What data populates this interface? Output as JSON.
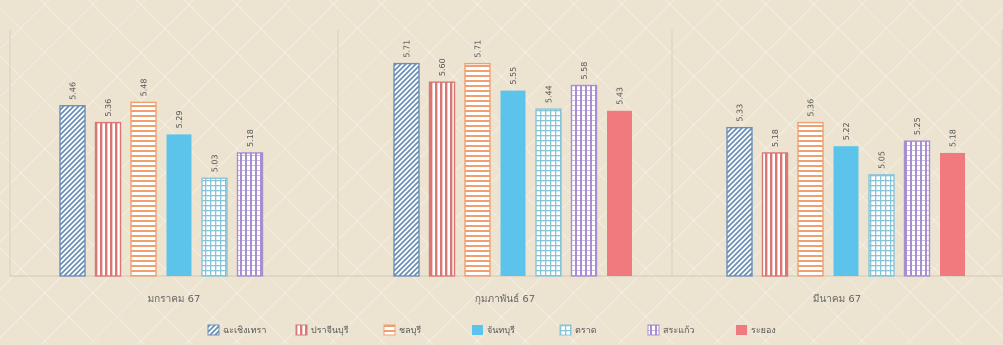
{
  "chart_data": {
    "type": "bar",
    "categories": [
      "มกราคม 67",
      "กุมภาพันธ์ 67",
      "มีนาคม 67"
    ],
    "series": [
      {
        "name": "ฉะเชิงเทรา",
        "values": [
          5.46,
          5.71,
          5.33
        ],
        "labels": [
          "5.46",
          "5.71",
          "5.33"
        ],
        "color": "#6d8fb6",
        "pattern": "diag"
      },
      {
        "name": "ปราจีนบุรี",
        "values": [
          5.36,
          5.6,
          5.18
        ],
        "labels": [
          "5.36",
          "5.60",
          "5.18"
        ],
        "color": "#d97873",
        "pattern": "vert"
      },
      {
        "name": "ชลบุรี",
        "values": [
          5.48,
          5.71,
          5.36
        ],
        "labels": [
          "5.48",
          "5.71",
          "5.36"
        ],
        "color": "#f0a070",
        "pattern": "horiz"
      },
      {
        "name": "จันทบุรี",
        "values": [
          5.29,
          5.55,
          5.22
        ],
        "labels": [
          "5.29",
          "5.55",
          "5.22"
        ],
        "color": "#5cc4ea",
        "pattern": "solid"
      },
      {
        "name": "ตราด",
        "values": [
          5.03,
          5.44,
          5.05
        ],
        "labels": [
          "5.03",
          "5.44",
          "5.05"
        ],
        "color": "#88c4d8",
        "pattern": "grid"
      },
      {
        "name": "สระแก้ว",
        "values": [
          5.18,
          5.58,
          5.25
        ],
        "labels": [
          "5.18",
          "5.58",
          "5.25"
        ],
        "color": "#a88ed0",
        "pattern": "vert2"
      },
      {
        "name": "ระยอง",
        "values": [
          null,
          5.43,
          5.18
        ],
        "labels": [
          "",
          "5.43",
          "5.18"
        ],
        "color": "#f07a7e",
        "pattern": "solid"
      }
    ],
    "ylim": [
      4.45,
      5.85
    ],
    "grid": false,
    "legend": "bottom-center"
  }
}
